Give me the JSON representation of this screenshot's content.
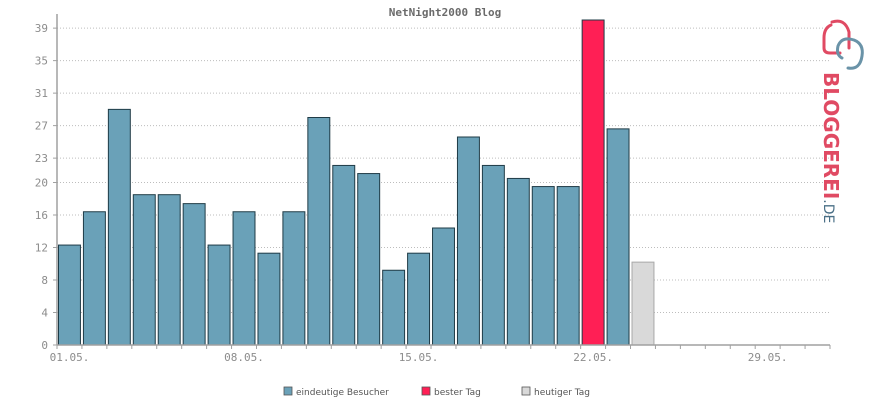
{
  "chart_data": {
    "type": "bar",
    "title": "NetNight2000 Blog",
    "yticks": [
      0,
      4,
      8,
      12,
      16,
      20,
      23,
      27,
      31,
      35,
      39
    ],
    "ylim": [
      0,
      40
    ],
    "x_tick_labels": [
      {
        "index": 0,
        "label": "01.05."
      },
      {
        "index": 7,
        "label": "08.05."
      },
      {
        "index": 14,
        "label": "15.05."
      },
      {
        "index": 21,
        "label": "22.05."
      },
      {
        "index": 28,
        "label": "29.05."
      }
    ],
    "num_slots": 31,
    "values": [
      12.3,
      16.4,
      29,
      18.5,
      18.5,
      17.4,
      12.3,
      16.4,
      11.3,
      16.4,
      28,
      22.1,
      21.1,
      9.2,
      11.3,
      14.4,
      25.6,
      22.1,
      20.5,
      19.5,
      19.5,
      40,
      26.6,
      10.2
    ],
    "categories": [
      "01.05.",
      "02.05.",
      "03.05.",
      "04.05.",
      "05.05.",
      "06.05.",
      "07.05.",
      "08.05.",
      "09.05.",
      "10.05.",
      "11.05.",
      "12.05.",
      "13.05.",
      "14.05.",
      "15.05.",
      "16.05.",
      "17.05.",
      "18.05.",
      "19.05.",
      "20.05.",
      "21.05.",
      "22.05.",
      "23.05.",
      "24.05."
    ],
    "best_day_index": 21,
    "today_index": 23,
    "grid": true,
    "legend": {
      "position": "bottom",
      "entries": [
        {
          "key": "visitors",
          "label": "eindeutige Besucher",
          "color": "#6aa1b8"
        },
        {
          "key": "best",
          "label": "bester Tag",
          "color": "#ff1f55"
        },
        {
          "key": "today",
          "label": "heutiger Tag",
          "color": "#d9d9d9"
        }
      ]
    },
    "colors": {
      "visitors": "#6aa1b8",
      "best": "#ff1f55",
      "today": "#d9d9d9",
      "bar_stroke": "#1f3b46"
    }
  },
  "watermark": {
    "text_main": "BLOGGEREI",
    "text_suffix": ".DE",
    "icon": "bloggerei-logo-icon",
    "color_main": "#e04a63",
    "color_suffix": "#4a6f86"
  }
}
